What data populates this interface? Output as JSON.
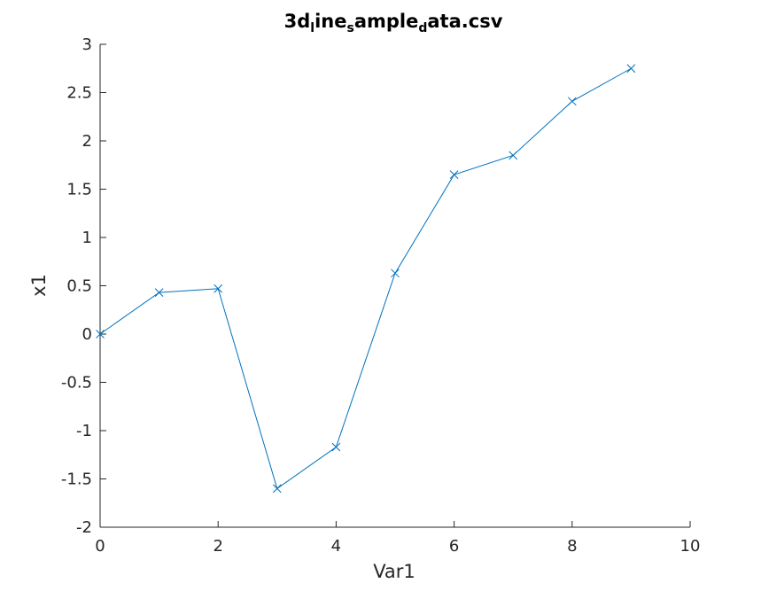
{
  "chart_data": {
    "type": "line",
    "title": {
      "segments": [
        {
          "text": "3d",
          "sub": false
        },
        {
          "text": "l",
          "sub": true
        },
        {
          "text": "ine",
          "sub": false
        },
        {
          "text": "s",
          "sub": true
        },
        {
          "text": "ample",
          "sub": false
        },
        {
          "text": "d",
          "sub": true
        },
        {
          "text": "ata.csv",
          "sub": false
        }
      ]
    },
    "xlabel": "Var1",
    "ylabel": "x1",
    "xlim": [
      0,
      10
    ],
    "ylim": [
      -2,
      3
    ],
    "xticks": [
      0,
      2,
      4,
      6,
      8,
      10
    ],
    "yticks": [
      -2,
      -1.5,
      -1,
      -0.5,
      0,
      0.5,
      1,
      1.5,
      2,
      2.5,
      3
    ],
    "xtick_labels": [
      "0",
      "2",
      "4",
      "6",
      "8",
      "10"
    ],
    "ytick_labels": [
      "-2",
      "-1.5",
      "-1",
      "-0.5",
      "0",
      "0.5",
      "1",
      "1.5",
      "2",
      "2.5",
      "3"
    ],
    "grid": false,
    "series": [
      {
        "x": [
          0,
          1,
          2,
          3,
          4,
          5,
          6,
          7,
          8,
          9
        ],
        "y": [
          0.0,
          0.43,
          0.47,
          -1.6,
          -1.17,
          0.63,
          1.65,
          1.85,
          2.41,
          2.75
        ],
        "marker": "x",
        "color": "#0072BD"
      }
    ]
  }
}
